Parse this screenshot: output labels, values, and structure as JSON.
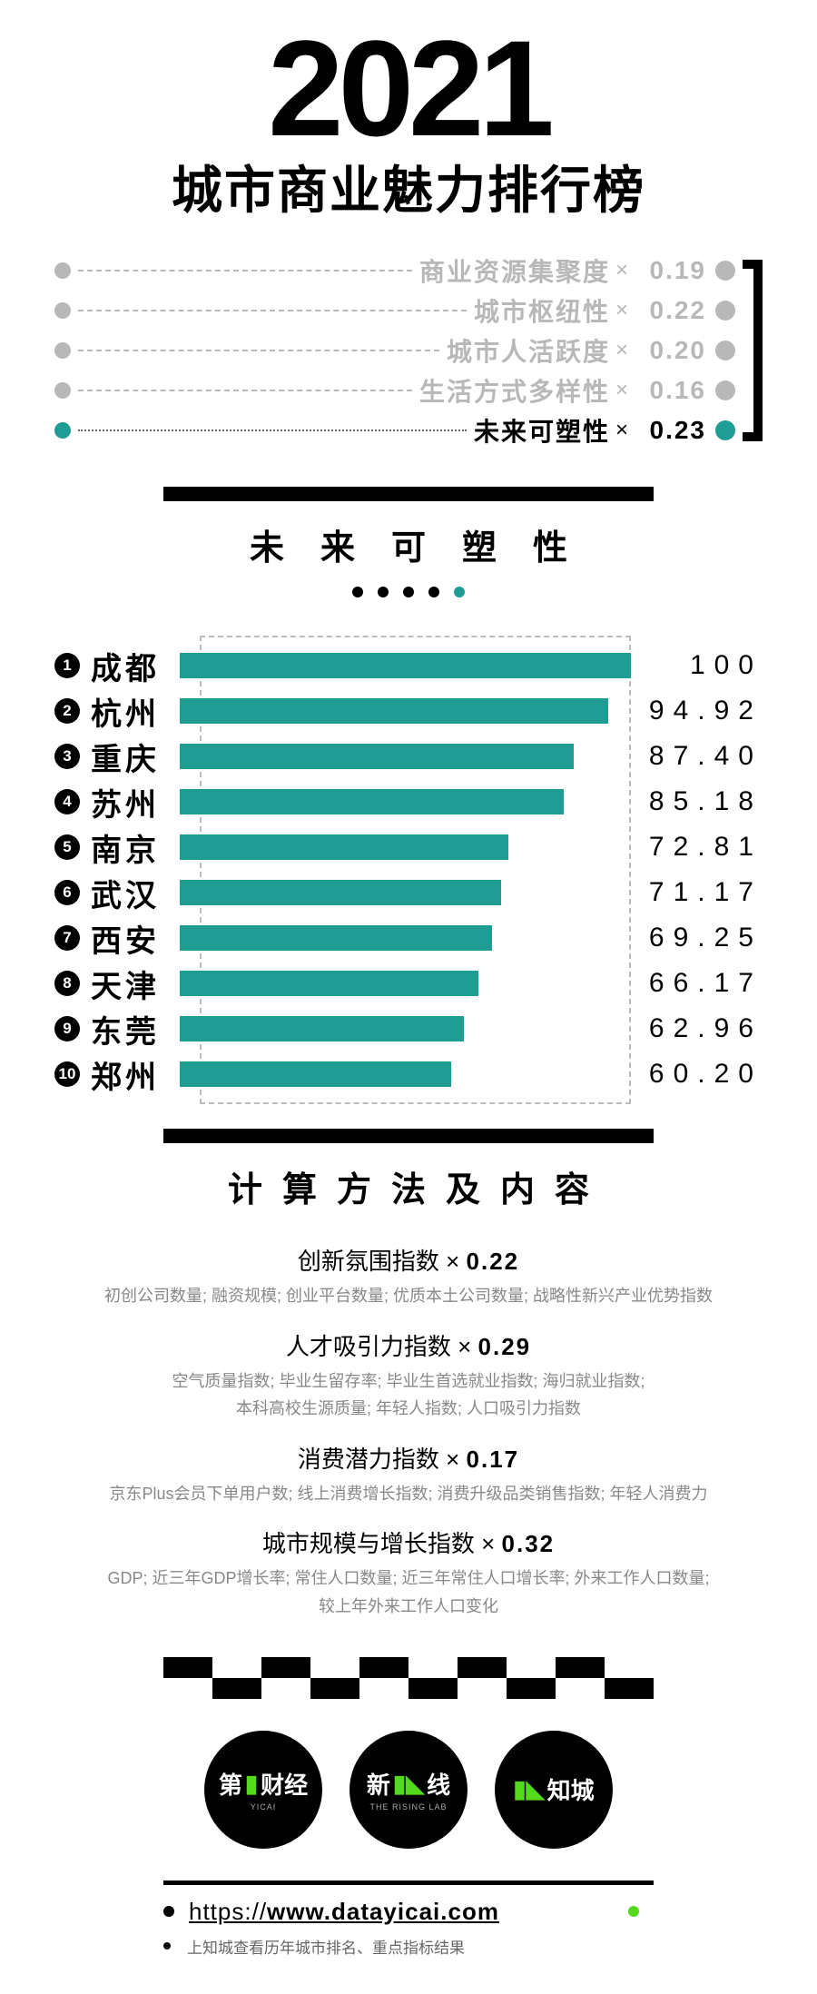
{
  "colors": {
    "accent": "#1f9c94",
    "muted": "#b8b8b8",
    "black": "#000000",
    "logo_accent": "#54d91d"
  },
  "header": {
    "year": "2021",
    "title": "城市商业魅力排行榜"
  },
  "weights": [
    {
      "label": "商业资源集聚度",
      "value": "0.19",
      "active": false
    },
    {
      "label": "城市枢纽性",
      "value": "0.22",
      "active": false
    },
    {
      "label": "城市人活跃度",
      "value": "0.20",
      "active": false
    },
    {
      "label": "生活方式多样性",
      "value": "0.16",
      "active": false
    },
    {
      "label": "未来可塑性",
      "value": "0.23",
      "active": true
    }
  ],
  "section": {
    "heading": "未来可塑性",
    "dot_count": 5,
    "active_dot": 4
  },
  "chart": {
    "type": "bar",
    "bar_color": "#1f9c94",
    "max": 100,
    "data": [
      {
        "rank": 1,
        "city": "成都",
        "value": 100.0,
        "score_display": "100"
      },
      {
        "rank": 2,
        "city": "杭州",
        "value": 94.92,
        "score_display": "94.92"
      },
      {
        "rank": 3,
        "city": "重庆",
        "value": 87.4,
        "score_display": "87.40"
      },
      {
        "rank": 4,
        "city": "苏州",
        "value": 85.18,
        "score_display": "85.18"
      },
      {
        "rank": 5,
        "city": "南京",
        "value": 72.81,
        "score_display": "72.81"
      },
      {
        "rank": 6,
        "city": "武汉",
        "value": 71.17,
        "score_display": "71.17"
      },
      {
        "rank": 7,
        "city": "西安",
        "value": 69.25,
        "score_display": "69.25"
      },
      {
        "rank": 8,
        "city": "天津",
        "value": 66.17,
        "score_display": "66.17"
      },
      {
        "rank": 9,
        "city": "东莞",
        "value": 62.96,
        "score_display": "62.96"
      },
      {
        "rank": 10,
        "city": "郑州",
        "value": 60.2,
        "score_display": "60.20"
      }
    ]
  },
  "method": {
    "heading": "计算方法及内容",
    "items": [
      {
        "name": "创新氛围指数",
        "weight": "0.22",
        "detail": "初创公司数量; 融资规模; 创业平台数量; 优质本土公司数量; 战略性新兴产业优势指数"
      },
      {
        "name": "人才吸引力指数",
        "weight": "0.29",
        "detail": "空气质量指数; 毕业生留存率; 毕业生首选就业指数; 海归就业指数;\n本科高校生源质量; 年轻人指数; 人口吸引力指数"
      },
      {
        "name": "消费潜力指数",
        "weight": "0.17",
        "detail": "京东Plus会员下单用户数; 线上消费增长指数; 消费升级品类销售指数; 年轻人消费力"
      },
      {
        "name": "城市规模与增长指数",
        "weight": "0.32",
        "detail": "GDP; 近三年GDP增长率; 常住人口数量; 近三年常住人口增长率; 外来工作人口数量;\n较上年外来工作人口变化"
      }
    ]
  },
  "footer": {
    "logos": [
      {
        "main_left": "第",
        "glyph": "▮",
        "main_right": "财经",
        "sub": "YICAI"
      },
      {
        "main_left": "新",
        "glyph": "▮◣",
        "main_right": "线",
        "sub": "THE RISING LAB"
      },
      {
        "main_left": "",
        "glyph": "▮◣",
        "main_right": "知城",
        "sub": ""
      }
    ],
    "url_prefix": "https://",
    "url_main": "www.datayicai.com",
    "note": "上知城查看历年城市排名、重点指标结果"
  }
}
